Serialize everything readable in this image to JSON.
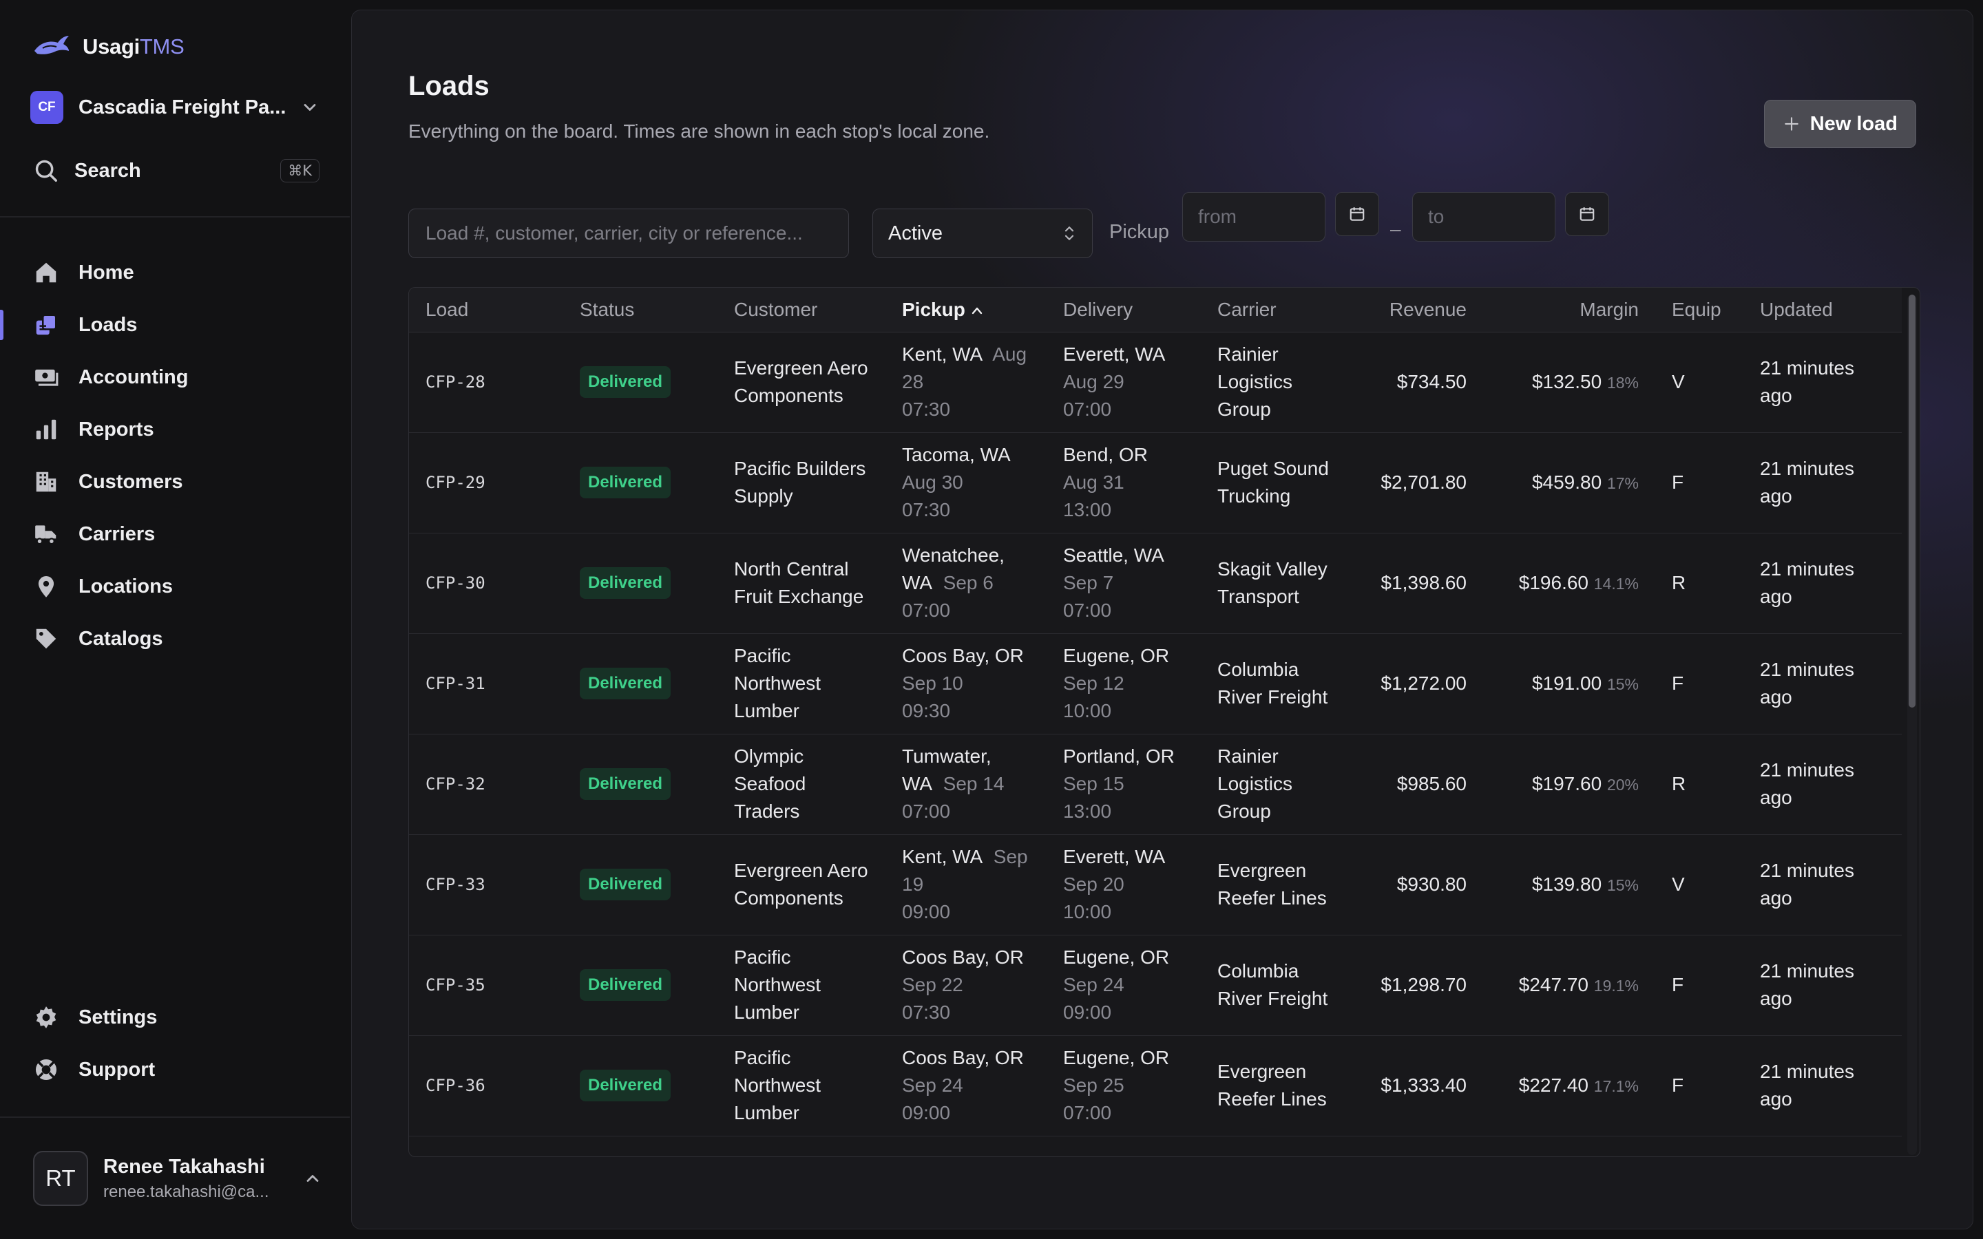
{
  "app": {
    "name_main": "Usagi",
    "name_accent": "TMS"
  },
  "org": {
    "badge": "CF",
    "name": "Cascadia Freight Pa..."
  },
  "search": {
    "label": "Search",
    "shortcut": "⌘K"
  },
  "nav": {
    "items": [
      {
        "label": "Home",
        "icon": "home-icon"
      },
      {
        "label": "Loads",
        "icon": "loads-icon",
        "active": true
      },
      {
        "label": "Accounting",
        "icon": "money-icon"
      },
      {
        "label": "Reports",
        "icon": "bar-chart-icon"
      },
      {
        "label": "Customers",
        "icon": "building-icon"
      },
      {
        "label": "Carriers",
        "icon": "truck-icon"
      },
      {
        "label": "Locations",
        "icon": "map-pin-icon"
      },
      {
        "label": "Catalogs",
        "icon": "tag-icon"
      }
    ],
    "bottom": [
      {
        "label": "Settings",
        "icon": "gear-icon"
      },
      {
        "label": "Support",
        "icon": "lifebuoy-icon"
      }
    ]
  },
  "user": {
    "initials": "RT",
    "name": "Renee Takahashi",
    "email": "renee.takahashi@ca..."
  },
  "page": {
    "title": "Loads",
    "subtitle": "Everything on the board. Times are shown in each stop's local zone.",
    "new_button": "New load"
  },
  "filters": {
    "search_placeholder": "Load #, customer, carrier, city or reference...",
    "status": "Active",
    "pickup_label": "Pickup",
    "from_placeholder": "from",
    "to_placeholder": "to",
    "dash": "–"
  },
  "table": {
    "columns": [
      "Load",
      "Status",
      "Customer",
      "Pickup",
      "Delivery",
      "Carrier",
      "Revenue",
      "Margin",
      "Equip",
      "Updated"
    ],
    "rows": [
      {
        "id": "CFP-28",
        "status": "Delivered",
        "customer": "Evergreen Aero Components",
        "pickup_city": "Kent, WA",
        "pickup_date": "Aug 28",
        "pickup_time": "07:30",
        "delivery_city": "Everett, WA",
        "delivery_date": "Aug 29",
        "delivery_time": "07:00",
        "carrier": "Rainier Logistics Group",
        "revenue": "$734.50",
        "margin": "$132.50",
        "margin_pct": "18%",
        "equip": "V",
        "updated": "21 minutes ago"
      },
      {
        "id": "CFP-29",
        "status": "Delivered",
        "customer": "Pacific Builders Supply",
        "pickup_city": "Tacoma, WA",
        "pickup_date": "Aug 30",
        "pickup_time": "07:30",
        "delivery_city": "Bend, OR",
        "delivery_date": "Aug 31",
        "delivery_time": "13:00",
        "carrier": "Puget Sound Trucking",
        "revenue": "$2,701.80",
        "margin": "$459.80",
        "margin_pct": "17%",
        "equip": "F",
        "updated": "21 minutes ago"
      },
      {
        "id": "CFP-30",
        "status": "Delivered",
        "customer": "North Central Fruit Exchange",
        "pickup_city": "Wenatchee, WA",
        "pickup_date": "Sep 6",
        "pickup_time": "07:00",
        "delivery_city": "Seattle, WA",
        "delivery_date": "Sep 7",
        "delivery_time": "07:00",
        "carrier": "Skagit Valley Transport",
        "revenue": "$1,398.60",
        "margin": "$196.60",
        "margin_pct": "14.1%",
        "equip": "R",
        "updated": "21 minutes ago"
      },
      {
        "id": "CFP-31",
        "status": "Delivered",
        "customer": "Pacific Northwest Lumber",
        "pickup_city": "Coos Bay, OR",
        "pickup_date": "Sep 10",
        "pickup_time": "09:30",
        "delivery_city": "Eugene, OR",
        "delivery_date": "Sep 12",
        "delivery_time": "10:00",
        "carrier": "Columbia River Freight",
        "revenue": "$1,272.00",
        "margin": "$191.00",
        "margin_pct": "15%",
        "equip": "F",
        "updated": "21 minutes ago"
      },
      {
        "id": "CFP-32",
        "status": "Delivered",
        "customer": "Olympic Seafood Traders",
        "pickup_city": "Tumwater, WA",
        "pickup_date": "Sep 14",
        "pickup_time": "07:00",
        "delivery_city": "Portland, OR",
        "delivery_date": "Sep 15",
        "delivery_time": "13:00",
        "carrier": "Rainier Logistics Group",
        "revenue": "$985.60",
        "margin": "$197.60",
        "margin_pct": "20%",
        "equip": "R",
        "updated": "21 minutes ago"
      },
      {
        "id": "CFP-33",
        "status": "Delivered",
        "customer": "Evergreen Aero Components",
        "pickup_city": "Kent, WA",
        "pickup_date": "Sep 19",
        "pickup_time": "09:00",
        "delivery_city": "Everett, WA",
        "delivery_date": "Sep 20",
        "delivery_time": "10:00",
        "carrier": "Evergreen Reefer Lines",
        "revenue": "$930.80",
        "margin": "$139.80",
        "margin_pct": "15%",
        "equip": "V",
        "updated": "21 minutes ago"
      },
      {
        "id": "CFP-35",
        "status": "Delivered",
        "customer": "Pacific Northwest Lumber",
        "pickup_city": "Coos Bay, OR",
        "pickup_date": "Sep 22",
        "pickup_time": "07:30",
        "delivery_city": "Eugene, OR",
        "delivery_date": "Sep 24",
        "delivery_time": "09:00",
        "carrier": "Columbia River Freight",
        "revenue": "$1,298.70",
        "margin": "$247.70",
        "margin_pct": "19.1%",
        "equip": "F",
        "updated": "21 minutes ago"
      },
      {
        "id": "CFP-36",
        "status": "Delivered",
        "customer": "Pacific Northwest Lumber",
        "pickup_city": "Coos Bay, OR",
        "pickup_date": "Sep 24",
        "pickup_time": "09:00",
        "delivery_city": "Eugene, OR",
        "delivery_date": "Sep 25",
        "delivery_time": "07:00",
        "carrier": "Evergreen Reefer Lines",
        "revenue": "$1,333.40",
        "margin": "$227.40",
        "margin_pct": "17.1%",
        "equip": "F",
        "updated": "21 minutes ago"
      }
    ]
  },
  "colors": {
    "accent": "#7a76f0",
    "status_delivered": "#3fd18b",
    "org_badge": "#5b54e8"
  }
}
